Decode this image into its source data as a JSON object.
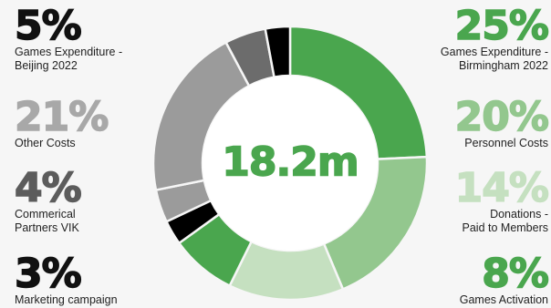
{
  "chart_data": {
    "type": "donut",
    "total_label": "18.2m",
    "segments": [
      {
        "label": "Games Expenditure - Birmingham 2022",
        "percent_label": "25%",
        "value": 25,
        "color": "#4aa64e"
      },
      {
        "label": "Personnel Costs",
        "percent_label": "20%",
        "value": 20,
        "color": "#93c78e"
      },
      {
        "label": "Donations - Paid to Members",
        "percent_label": "14%",
        "value": 14,
        "color": "#c5e0c0"
      },
      {
        "label": "Games Activation",
        "percent_label": "8%",
        "value": 8,
        "color": "#4aa64e"
      },
      {
        "label": "Marketing campaign",
        "percent_label": "3%",
        "value": 3,
        "color": "#000000"
      },
      {
        "label": "Commerical Partners VIK",
        "percent_label": "4%",
        "value": 4,
        "color": "#9b9b9b"
      },
      {
        "label": "Other Costs",
        "percent_label": "21%",
        "value": 21,
        "color": "#9b9b9b"
      },
      {
        "label": "Games Expenditure - Beijing 2022",
        "percent_label": "5%",
        "value": 5,
        "color": "#6c6c6c"
      },
      {
        "label": "",
        "percent_label": "",
        "value": 3,
        "color": "#000000"
      }
    ]
  },
  "left_stats": [
    {
      "percent": "5%",
      "label_lines": [
        "Games Expenditure -",
        "Beijing 2022"
      ],
      "color": "#111111"
    },
    {
      "percent": "21%",
      "label_lines": [
        "Other Costs"
      ],
      "color": "#a8a8a8"
    },
    {
      "percent": "4%",
      "label_lines": [
        "Commerical",
        "Partners VIK"
      ],
      "color": "#5c5c5c"
    },
    {
      "percent": "3%",
      "label_lines": [
        "Marketing campaign"
      ],
      "color": "#111111"
    }
  ],
  "right_stats": [
    {
      "percent": "25%",
      "label_lines": [
        "Games Expenditure -",
        "Birmingham 2022"
      ],
      "color": "#4aa64e"
    },
    {
      "percent": "20%",
      "label_lines": [
        "Personnel Costs"
      ],
      "color": "#93c78e"
    },
    {
      "percent": "14%",
      "label_lines": [
        "Donations -",
        "Paid to Members"
      ],
      "color": "#c5e0c0"
    },
    {
      "percent": "8%",
      "label_lines": [
        "Games Activation"
      ],
      "color": "#4aa64e"
    }
  ],
  "colors": {
    "center_text": "#4aa64e",
    "background": "#f6f6f6"
  }
}
